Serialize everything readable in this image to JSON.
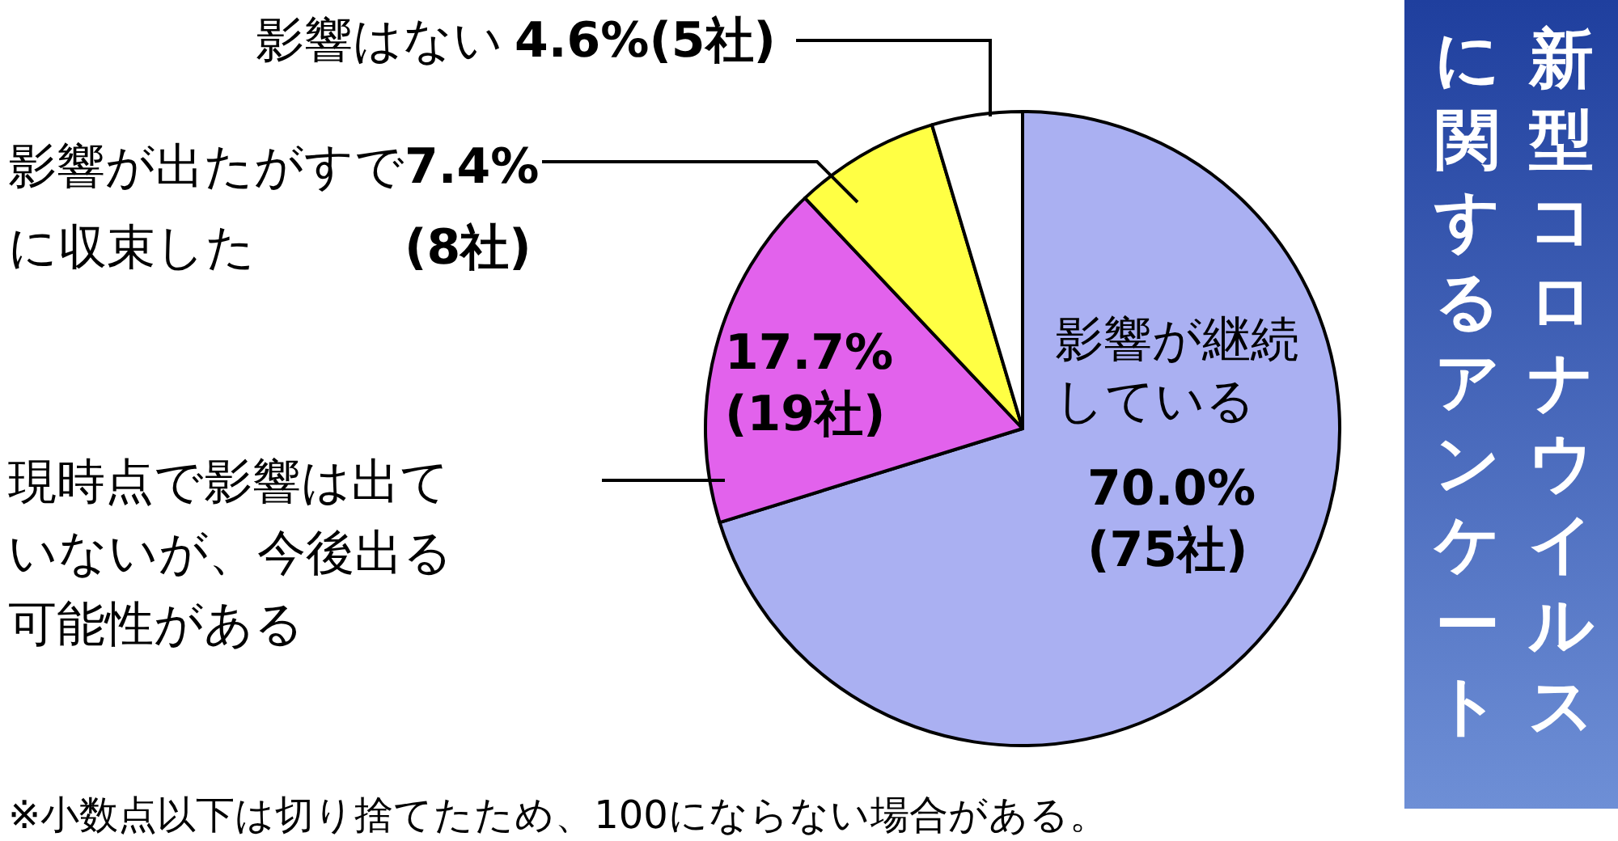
{
  "chart_data": {
    "type": "pie",
    "title": "新型コロナウイルスに関するアンケート",
    "categories": [
      "影響が継続している",
      "現時点で影響は出ていないが、今後出る可能性がある",
      "影響が出たがすでに収束した",
      "影響はない"
    ],
    "values": [
      70.0,
      17.7,
      7.4,
      4.6
    ],
    "colors": [
      "#aab0f2",
      "#e262ec",
      "#ffff44",
      "#ffffff"
    ],
    "value_labels": [
      "70.0%\n(75社)",
      "17.7%\n(19社)",
      "7.4%\n(8社)",
      "4.6%(5社)"
    ],
    "annotations": [
      "※小数点以下は切り捨てたため、100にならない場合がある。"
    ]
  }
}
